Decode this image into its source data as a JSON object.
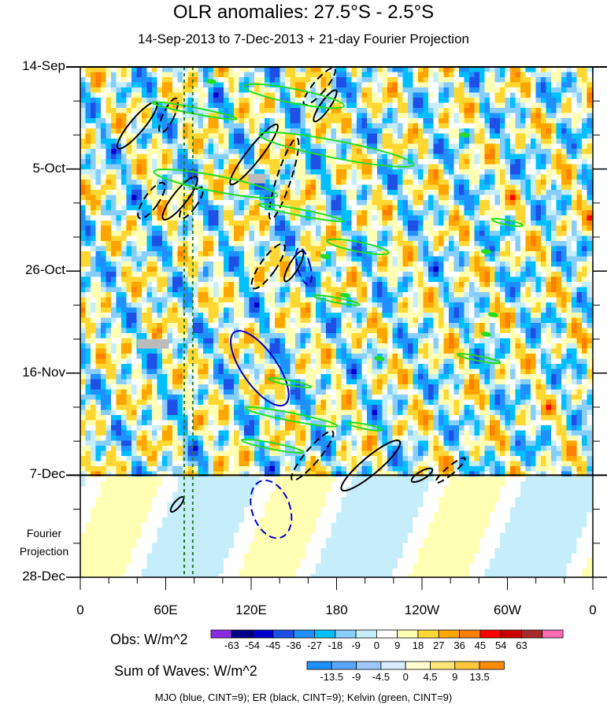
{
  "chart_data": {
    "type": "heatmap",
    "title": "OLR anomalies: 27.5°S - 2.5°S",
    "subtitle": "14-Sep-2013 to 7-Dec-2013 + 21-day Fourier Projection",
    "y_ticks": [
      "14-Sep",
      "5-Oct",
      "26-Oct",
      "16-Nov",
      "7-Dec",
      "28-Dec"
    ],
    "x_ticks": [
      "0",
      "60E",
      "120E",
      "180",
      "120W",
      "60W",
      "0"
    ],
    "x_range_deg": [
      0,
      360
    ],
    "y_range_days": [
      0,
      105
    ],
    "observation_end": "7-Dec",
    "projection_label": [
      "Fourier",
      "Projection"
    ],
    "reference_lines_lon": [
      73,
      79
    ],
    "obs_colorbar": {
      "label": "Obs: W/m^2",
      "levels": [
        "-63",
        "-54",
        "-45",
        "-36",
        "-27",
        "-18",
        "-9",
        "0",
        "9",
        "18",
        "27",
        "36",
        "45",
        "54",
        "63"
      ],
      "colors": [
        "#8a2be2",
        "#00008b",
        "#0000cd",
        "#1e50e6",
        "#1e90ff",
        "#00bfff",
        "#87cefa",
        "#c6eefa",
        "#ffffff",
        "#ffffb4",
        "#ffd732",
        "#ffa500",
        "#ff7f00",
        "#ff0000",
        "#cc0000",
        "#a52a2a",
        "#ff69b4"
      ]
    },
    "waves_colorbar": {
      "label": "Sum of Waves: W/m^2",
      "levels": [
        "-13.5",
        "-9",
        "-4.5",
        "0",
        "4.5",
        "9",
        "13.5"
      ],
      "colors": [
        "#1e90ff",
        "#5aa6ff",
        "#9cc8ff",
        "#d6ecff",
        "#ffffd2",
        "#ffe678",
        "#ffc83c",
        "#ff8c00"
      ]
    },
    "contour_legend": "MJO (blue, CINT=9); ER (black, CINT=9); Kelvin (green, CINT=9)",
    "series": [
      {
        "name": "MJO",
        "color": "#0000cc"
      },
      {
        "name": "ER",
        "color": "#000000"
      },
      {
        "name": "Kelvin",
        "color": "#22dd22"
      }
    ]
  }
}
